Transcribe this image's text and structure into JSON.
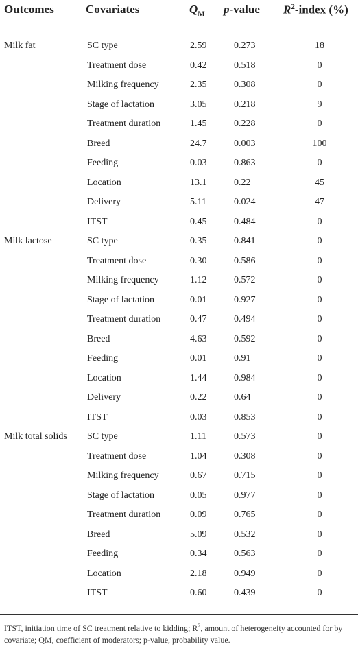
{
  "headers": {
    "outcomes": "Outcomes",
    "covariates": "Covariates",
    "qm_letter": "Q",
    "qm_sub": "M",
    "pvalue_italic": "p",
    "pvalue_rest": "-value",
    "r2_letter": "R",
    "r2_sup": "2",
    "r2_rest": "-index (%)"
  },
  "rows": [
    {
      "outcome": "Milk fat",
      "covariate": "SC type",
      "qm": "2.59",
      "p": "0.273",
      "r2": "18"
    },
    {
      "outcome": "",
      "covariate": "Treatment dose",
      "qm": "0.42",
      "p": "0.518",
      "r2": "0"
    },
    {
      "outcome": "",
      "covariate": "Milking frequency",
      "qm": "2.35",
      "p": "0.308",
      "r2": "0"
    },
    {
      "outcome": "",
      "covariate": "Stage of lactation",
      "qm": "3.05",
      "p": "0.218",
      "r2": "9"
    },
    {
      "outcome": "",
      "covariate": "Treatment duration",
      "qm": "1.45",
      "p": "0.228",
      "r2": "0"
    },
    {
      "outcome": "",
      "covariate": "Breed",
      "qm": "24.7",
      "p": "0.003",
      "r2": "100"
    },
    {
      "outcome": "",
      "covariate": "Feeding",
      "qm": "0.03",
      "p": "0.863",
      "r2": "0"
    },
    {
      "outcome": "",
      "covariate": "Location",
      "qm": "13.1",
      "p": "0.22",
      "r2": "45"
    },
    {
      "outcome": "",
      "covariate": "Delivery",
      "qm": "5.11",
      "p": "0.024",
      "r2": "47"
    },
    {
      "outcome": "",
      "covariate": "ITST",
      "qm": "0.45",
      "p": "0.484",
      "r2": "0"
    },
    {
      "outcome": "Milk lactose",
      "covariate": "SC type",
      "qm": "0.35",
      "p": "0.841",
      "r2": "0"
    },
    {
      "outcome": "",
      "covariate": "Treatment dose",
      "qm": "0.30",
      "p": "0.586",
      "r2": "0"
    },
    {
      "outcome": "",
      "covariate": "Milking frequency",
      "qm": "1.12",
      "p": "0.572",
      "r2": "0"
    },
    {
      "outcome": "",
      "covariate": "Stage of lactation",
      "qm": "0.01",
      "p": "0.927",
      "r2": "0"
    },
    {
      "outcome": "",
      "covariate": "Treatment duration",
      "qm": "0.47",
      "p": "0.494",
      "r2": "0"
    },
    {
      "outcome": "",
      "covariate": "Breed",
      "qm": "4.63",
      "p": "0.592",
      "r2": "0"
    },
    {
      "outcome": "",
      "covariate": "Feeding",
      "qm": "0.01",
      "p": "0.91",
      "r2": "0"
    },
    {
      "outcome": "",
      "covariate": "Location",
      "qm": "1.44",
      "p": "0.984",
      "r2": "0"
    },
    {
      "outcome": "",
      "covariate": "Delivery",
      "qm": "0.22",
      "p": "0.64",
      "r2": "0"
    },
    {
      "outcome": "",
      "covariate": "ITST",
      "qm": "0.03",
      "p": "0.853",
      "r2": "0"
    },
    {
      "outcome": "Milk total solids",
      "covariate": "SC type",
      "qm": "1.11",
      "p": "0.573",
      "r2": "0"
    },
    {
      "outcome": "",
      "covariate": "Treatment dose",
      "qm": "1.04",
      "p": "0.308",
      "r2": "0"
    },
    {
      "outcome": "",
      "covariate": "Milking frequency",
      "qm": "0.67",
      "p": "0.715",
      "r2": "0"
    },
    {
      "outcome": "",
      "covariate": "Stage of lactation",
      "qm": "0.05",
      "p": "0.977",
      "r2": "0"
    },
    {
      "outcome": "",
      "covariate": "Treatment duration",
      "qm": "0.09",
      "p": "0.765",
      "r2": "0"
    },
    {
      "outcome": "",
      "covariate": "Breed",
      "qm": "5.09",
      "p": "0.532",
      "r2": "0"
    },
    {
      "outcome": "",
      "covariate": "Feeding",
      "qm": "0.34",
      "p": "0.563",
      "r2": "0"
    },
    {
      "outcome": "",
      "covariate": "Location",
      "qm": "2.18",
      "p": "0.949",
      "r2": "0"
    },
    {
      "outcome": "",
      "covariate": "ITST",
      "qm": "0.60",
      "p": "0.439",
      "r2": "0"
    }
  ],
  "footnote": {
    "part1": "ITST, initiation time of SC treatment relative to kidding; R",
    "sup": "2",
    "part2": ", amount of heterogeneity accounted for by covariate; QM, coefficient of moderators; p-value, probability value."
  }
}
